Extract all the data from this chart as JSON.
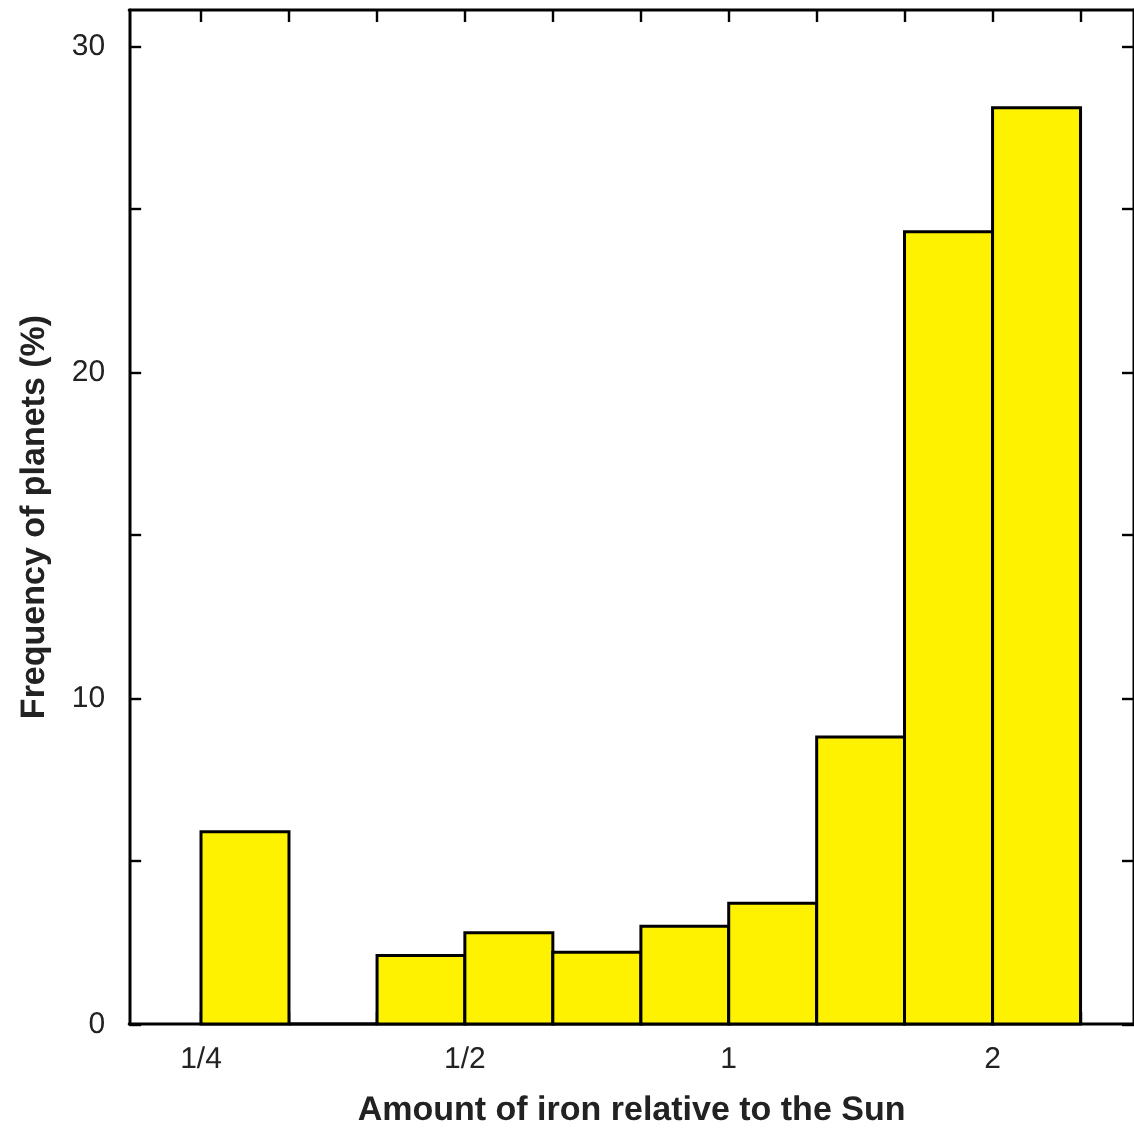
{
  "chart_data": {
    "type": "histogram",
    "xlabel": "Amount of iron relative to the Sun",
    "ylabel": "Frequency of planets (%)",
    "log": "x",
    "bins": [
      0.25,
      0.315,
      0.397,
      0.5,
      0.63,
      0.794,
      1,
      1.26,
      1.587,
      2,
      2.52
    ],
    "values": [
      5.9,
      0,
      2.1,
      2.8,
      2.2,
      3.0,
      3.7,
      8.8,
      24.3,
      28.1
    ],
    "color": "#fff200",
    "xlim": [
      0.207,
      2.9
    ],
    "xticks": [
      {
        "value": 0.25,
        "label": "1/4"
      },
      {
        "value": 0.315,
        "label": null
      },
      {
        "value": 0.397,
        "label": null
      },
      {
        "value": 0.5,
        "label": "1/2"
      },
      {
        "value": 0.63,
        "label": null
      },
      {
        "value": 0.794,
        "label": null
      },
      {
        "value": 1,
        "label": "1"
      },
      {
        "value": 1.26,
        "label": null
      },
      {
        "value": 1.587,
        "label": null
      },
      {
        "value": 2,
        "label": "2"
      },
      {
        "value": 2.52,
        "label": null
      }
    ],
    "ylim": [
      0,
      31.1
    ],
    "yticks": [
      0,
      {
        "value": 5,
        "label": null
      },
      10,
      {
        "value": 15,
        "label": null
      },
      20,
      {
        "value": 25,
        "label": null
      },
      30
    ],
    "grid": false
  }
}
